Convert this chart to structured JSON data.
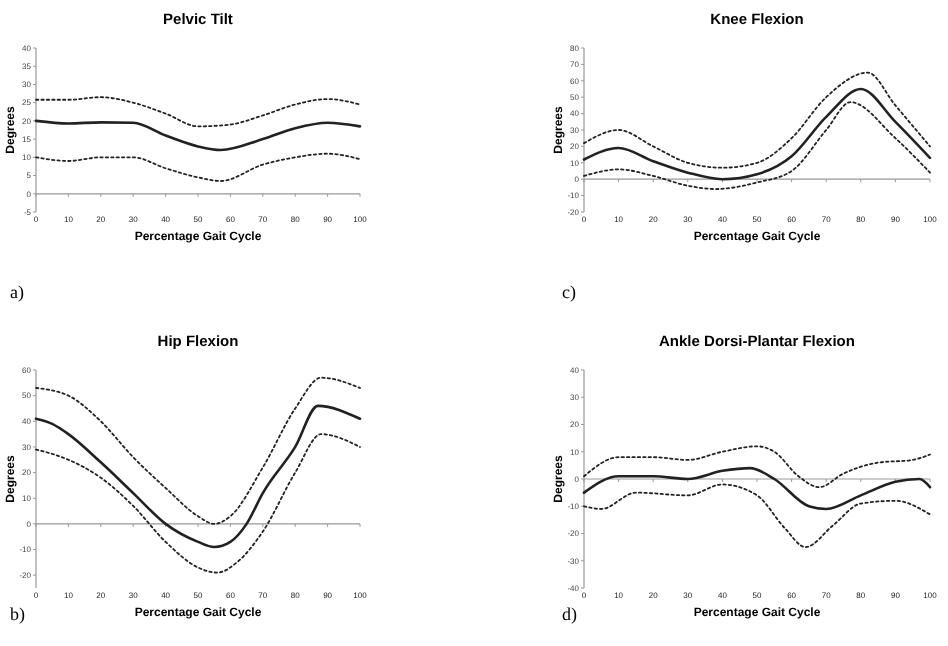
{
  "chart_data": [
    {
      "type": "line",
      "title": "Pelvic Tilt",
      "xlabel": "Percentage Gait Cycle",
      "ylabel": "Degrees",
      "annotations": [
        "a)"
      ],
      "xlim": [
        0,
        100
      ],
      "ylim": [
        -5,
        40
      ],
      "xticks": [
        0,
        10,
        20,
        30,
        40,
        50,
        60,
        70,
        80,
        90,
        100
      ],
      "yticks": [
        -5,
        0,
        5,
        10,
        15,
        20,
        25,
        30,
        35,
        40
      ],
      "marker": "none",
      "series": [
        {
          "color": "#222222",
          "line_style": "dotted",
          "x": [
            0,
            10,
            20,
            30,
            40,
            50,
            60,
            70,
            80,
            90,
            100
          ],
          "values": [
            25.8,
            25.8,
            26.5,
            25,
            22,
            18.5,
            19,
            21.5,
            24.5,
            26,
            24.5
          ]
        },
        {
          "color": "#222222",
          "line_style": "solid",
          "x": [
            0,
            10,
            20,
            30,
            40,
            50,
            57,
            70,
            80,
            90,
            100
          ],
          "values": [
            20,
            19.3,
            19.6,
            19.5,
            16,
            13,
            12,
            15,
            18,
            19.5,
            18.5
          ]
        },
        {
          "color": "#222222",
          "line_style": "dotted",
          "x": [
            0,
            10,
            20,
            30,
            40,
            50,
            57,
            70,
            80,
            90,
            100
          ],
          "values": [
            10,
            9,
            10,
            10,
            7,
            4.5,
            3.5,
            8,
            10,
            11,
            9.5
          ]
        }
      ]
    },
    {
      "type": "line",
      "title": "Knee Flexion",
      "xlabel": "Percentage Gait Cycle",
      "ylabel": "Degrees",
      "annotations": [
        "c)"
      ],
      "xlim": [
        0,
        100
      ],
      "ylim": [
        -20,
        80
      ],
      "xticks": [
        0,
        10,
        20,
        30,
        40,
        50,
        60,
        70,
        80,
        90,
        100
      ],
      "yticks": [
        -20,
        -10,
        0,
        10,
        20,
        30,
        40,
        50,
        60,
        70,
        80
      ],
      "marker": "none",
      "series": [
        {
          "color": "#222222",
          "line_style": "dotted",
          "x": [
            0,
            10,
            20,
            30,
            40,
            50,
            60,
            70,
            82,
            90,
            100
          ],
          "values": [
            22,
            30,
            20,
            10,
            7,
            10,
            25,
            50,
            65,
            45,
            20
          ]
        },
        {
          "color": "#222222",
          "line_style": "solid",
          "x": [
            0,
            10,
            20,
            30,
            40,
            50,
            60,
            70,
            80,
            90,
            100
          ],
          "values": [
            12,
            19,
            11,
            4,
            0,
            3,
            14,
            38,
            55,
            35,
            13
          ]
        },
        {
          "color": "#222222",
          "line_style": "dotted",
          "x": [
            0,
            10,
            20,
            30,
            38,
            50,
            60,
            70,
            77,
            90,
            100
          ],
          "values": [
            2,
            6,
            2,
            -4,
            -6,
            -2,
            5,
            30,
            47,
            25,
            4
          ]
        }
      ]
    },
    {
      "type": "line",
      "title": "Hip Flexion",
      "xlabel": "Percentage Gait Cycle",
      "ylabel": "Degrees",
      "annotations": [
        "b)"
      ],
      "xlim": [
        0,
        100
      ],
      "ylim": [
        -25,
        60
      ],
      "xticks": [
        0,
        10,
        20,
        30,
        40,
        50,
        60,
        70,
        80,
        90,
        100
      ],
      "yticks": [
        -20,
        -10,
        0,
        10,
        20,
        30,
        40,
        50,
        60
      ],
      "marker": "none",
      "series": [
        {
          "color": "#222222",
          "line_style": "dotted",
          "x": [
            0,
            10,
            20,
            30,
            40,
            50,
            55,
            60,
            70,
            80,
            88,
            100
          ],
          "values": [
            53,
            50,
            40,
            26,
            14,
            3,
            0,
            3,
            22,
            45,
            57,
            53
          ]
        },
        {
          "color": "#222222",
          "line_style": "solid",
          "x": [
            0,
            5,
            10,
            20,
            30,
            40,
            50,
            55,
            60,
            65,
            70,
            80,
            87,
            100
          ],
          "values": [
            41,
            39,
            35,
            24,
            12,
            0,
            -7,
            -9,
            -7,
            0,
            12,
            30,
            46,
            41
          ]
        },
        {
          "color": "#222222",
          "line_style": "dotted",
          "x": [
            0,
            10,
            20,
            30,
            40,
            50,
            56,
            62,
            70,
            80,
            88,
            100
          ],
          "values": [
            29,
            25,
            18,
            7,
            -7,
            -17,
            -19,
            -15,
            -3,
            20,
            35,
            30
          ]
        }
      ]
    },
    {
      "type": "line",
      "title": "Ankle Dorsi-Plantar Flexion",
      "xlabel": "Percentage Gait Cycle",
      "ylabel": "Degrees",
      "annotations": [
        "d)"
      ],
      "xlim": [
        0,
        100
      ],
      "ylim": [
        -40,
        40
      ],
      "xticks": [
        0,
        10,
        20,
        30,
        40,
        50,
        60,
        70,
        80,
        90,
        100
      ],
      "yticks": [
        -40,
        -30,
        -20,
        -10,
        0,
        10,
        20,
        30,
        40
      ],
      "marker": "none",
      "series": [
        {
          "color": "#222222",
          "line_style": "dotted",
          "x": [
            0,
            10,
            20,
            30,
            40,
            50,
            55,
            62,
            68,
            75,
            85,
            95,
            100
          ],
          "values": [
            1,
            8,
            8,
            7,
            10,
            12,
            10,
            1,
            -3,
            2,
            6,
            7,
            9
          ]
        },
        {
          "color": "#222222",
          "line_style": "solid",
          "x": [
            0,
            10,
            20,
            30,
            40,
            48,
            55,
            65,
            70,
            80,
            90,
            97,
            100
          ],
          "values": [
            -5,
            1,
            1,
            0,
            3,
            4,
            0,
            -10,
            -11,
            -6,
            -1,
            0,
            -3
          ]
        },
        {
          "color": "#222222",
          "line_style": "dotted",
          "x": [
            0,
            5,
            15,
            30,
            40,
            50,
            58,
            64,
            72,
            80,
            90,
            100
          ],
          "values": [
            -10,
            -11,
            -5,
            -6,
            -2,
            -6,
            -18,
            -25,
            -17,
            -9,
            -8,
            -13
          ]
        }
      ]
    }
  ]
}
